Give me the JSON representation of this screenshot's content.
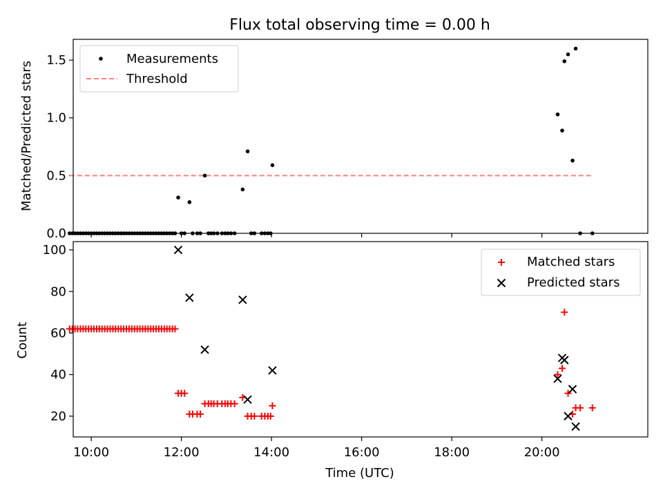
{
  "figure": {
    "title": "Flux total observing time = 0.00 h",
    "colors": {
      "measurement": "#000000",
      "threshold": "#ff7f7f",
      "matched": "#ff0000",
      "predicted": "#000000"
    }
  },
  "chart_data": [
    {
      "type": "scatter",
      "ylabel": "Matched/Predicted stars",
      "xlim": [
        9.6,
        22.35
      ],
      "ylim": [
        0,
        1.68
      ],
      "yticks": [
        "0.0",
        "0.5",
        "1.0",
        "1.5"
      ],
      "legend": {
        "placement": "upper-left",
        "entries": [
          "Measurements",
          "Threshold"
        ]
      },
      "series": [
        {
          "name": "Measurements",
          "marker": "dot",
          "x": [
            9.52,
            9.58,
            9.64,
            9.7,
            9.76,
            9.82,
            9.88,
            9.94,
            10.0,
            10.06,
            10.12,
            10.18,
            10.24,
            10.3,
            10.36,
            10.42,
            10.48,
            10.54,
            10.6,
            10.66,
            10.72,
            10.78,
            10.84,
            10.9,
            10.96,
            11.02,
            11.08,
            11.14,
            11.2,
            11.26,
            11.32,
            11.38,
            11.44,
            11.5,
            11.56,
            11.62,
            11.68,
            11.74,
            11.8,
            11.86,
            11.93,
            12.0,
            12.07,
            12.18,
            12.25,
            12.35,
            12.42,
            12.52,
            12.6,
            12.66,
            12.72,
            12.8,
            12.9,
            12.97,
            13.03,
            13.1,
            13.18,
            13.36,
            13.47,
            13.55,
            13.62,
            13.78,
            13.85,
            13.92,
            13.98,
            14.02,
            20.35,
            20.45,
            20.5,
            20.58,
            20.68,
            20.75,
            20.85,
            21.12
          ],
          "y": [
            0,
            0,
            0,
            0,
            0,
            0,
            0,
            0,
            0,
            0,
            0,
            0,
            0,
            0,
            0,
            0,
            0,
            0,
            0,
            0,
            0,
            0,
            0,
            0,
            0,
            0,
            0,
            0,
            0,
            0,
            0,
            0,
            0,
            0,
            0,
            0,
            0,
            0,
            0,
            0,
            0.31,
            0,
            0,
            0.27,
            0,
            0,
            0,
            0.5,
            0,
            0,
            0,
            0,
            0,
            0,
            0,
            0,
            0,
            0.38,
            0.71,
            0,
            0,
            0,
            0,
            0,
            0,
            0.59,
            1.03,
            0.89,
            1.49,
            1.55,
            0.63,
            1.6,
            0,
            0
          ]
        },
        {
          "name": "Threshold",
          "marker": "dashed-line",
          "x": [
            9.52,
            21.12
          ],
          "y": [
            0.5,
            0.5
          ]
        }
      ]
    },
    {
      "type": "scatter",
      "xlabel": "Time (UTC)",
      "ylabel": "Count",
      "xlim": [
        9.6,
        22.35
      ],
      "ylim": [
        10,
        104
      ],
      "xticks": [
        {
          "value": 10,
          "label": "10:00"
        },
        {
          "value": 12,
          "label": "12:00"
        },
        {
          "value": 14,
          "label": "14:00"
        },
        {
          "value": 16,
          "label": "16:00"
        },
        {
          "value": 18,
          "label": "18:00"
        },
        {
          "value": 20,
          "label": "20:00"
        }
      ],
      "yticks": [
        "20",
        "40",
        "60",
        "80",
        "100"
      ],
      "legend": {
        "placement": "upper-right",
        "entries": [
          "Matched stars",
          "Predicted stars"
        ]
      },
      "series": [
        {
          "name": "Matched stars",
          "marker": "plus",
          "x": [
            9.52,
            9.58,
            9.64,
            9.7,
            9.76,
            9.82,
            9.88,
            9.94,
            10.0,
            10.06,
            10.12,
            10.18,
            10.24,
            10.3,
            10.36,
            10.42,
            10.48,
            10.54,
            10.6,
            10.66,
            10.72,
            10.78,
            10.84,
            10.9,
            10.96,
            11.02,
            11.08,
            11.14,
            11.2,
            11.26,
            11.32,
            11.38,
            11.44,
            11.5,
            11.56,
            11.62,
            11.68,
            11.74,
            11.8,
            11.86,
            11.93,
            12.0,
            12.07,
            12.18,
            12.25,
            12.35,
            12.42,
            12.52,
            12.6,
            12.66,
            12.72,
            12.8,
            12.9,
            12.97,
            13.03,
            13.1,
            13.18,
            13.36,
            13.47,
            13.55,
            13.62,
            13.78,
            13.85,
            13.92,
            13.98,
            14.02,
            20.35,
            20.45,
            20.5,
            20.58,
            20.68,
            20.75,
            20.85,
            21.12
          ],
          "y": [
            62,
            62,
            62,
            62,
            62,
            62,
            62,
            62,
            62,
            62,
            62,
            62,
            62,
            62,
            62,
            62,
            62,
            62,
            62,
            62,
            62,
            62,
            62,
            62,
            62,
            62,
            62,
            62,
            62,
            62,
            62,
            62,
            62,
            62,
            62,
            62,
            62,
            62,
            62,
            62,
            31,
            31,
            31,
            21,
            21,
            21,
            21,
            26,
            26,
            26,
            26,
            26,
            26,
            26,
            26,
            26,
            26,
            29,
            20,
            20,
            20,
            20,
            20,
            20,
            20,
            25,
            40,
            43,
            70,
            31,
            21,
            24,
            24,
            24
          ]
        },
        {
          "name": "Predicted stars",
          "marker": "x",
          "x": [
            11.93,
            12.18,
            12.52,
            13.36,
            13.47,
            14.02,
            20.35,
            20.45,
            20.5,
            20.58,
            20.68,
            20.75
          ],
          "y": [
            100,
            77,
            52,
            76,
            28,
            42,
            38,
            48,
            47,
            20,
            33,
            15
          ]
        }
      ]
    }
  ]
}
